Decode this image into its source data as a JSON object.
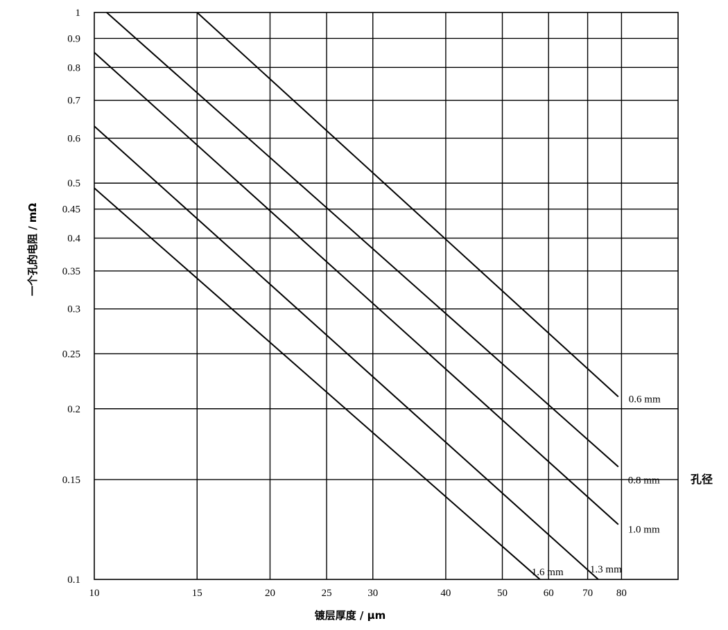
{
  "chart_data": {
    "type": "line",
    "xscale": "log",
    "yscale": "log",
    "xlim": [
      10,
      100
    ],
    "ylim": [
      0.1,
      1
    ],
    "grid": true,
    "xlabel": "镀层厚度 / μm",
    "ylabel": "一个孔的电阻 / mΩ",
    "xticks": [
      "10",
      "15",
      "20",
      "25",
      "30",
      "40",
      "50",
      "60",
      "70",
      "80"
    ],
    "yticks": [
      "0.1",
      "0.15",
      "0.2",
      "0.25",
      "0.3",
      "0.35",
      "0.4",
      "0.45",
      "0.5",
      "0.6",
      "0.7",
      "0.8",
      "0.9",
      "1"
    ],
    "legend_title": "孔径",
    "series": [
      {
        "name": "0.6 mm",
        "x": [
          15,
          79
        ],
        "y": [
          1.0,
          0.21
        ]
      },
      {
        "name": "0.8 mm",
        "x": [
          10.5,
          79
        ],
        "y": [
          1.0,
          0.158
        ]
      },
      {
        "name": "1.0 mm",
        "x": [
          10,
          79
        ],
        "y": [
          0.85,
          0.125
        ]
      },
      {
        "name": "1.3 mm",
        "x": [
          10,
          73
        ],
        "y": [
          0.63,
          0.1
        ]
      },
      {
        "name": "1.6 mm",
        "x": [
          10,
          58
        ],
        "y": [
          0.49,
          0.1
        ]
      }
    ]
  }
}
